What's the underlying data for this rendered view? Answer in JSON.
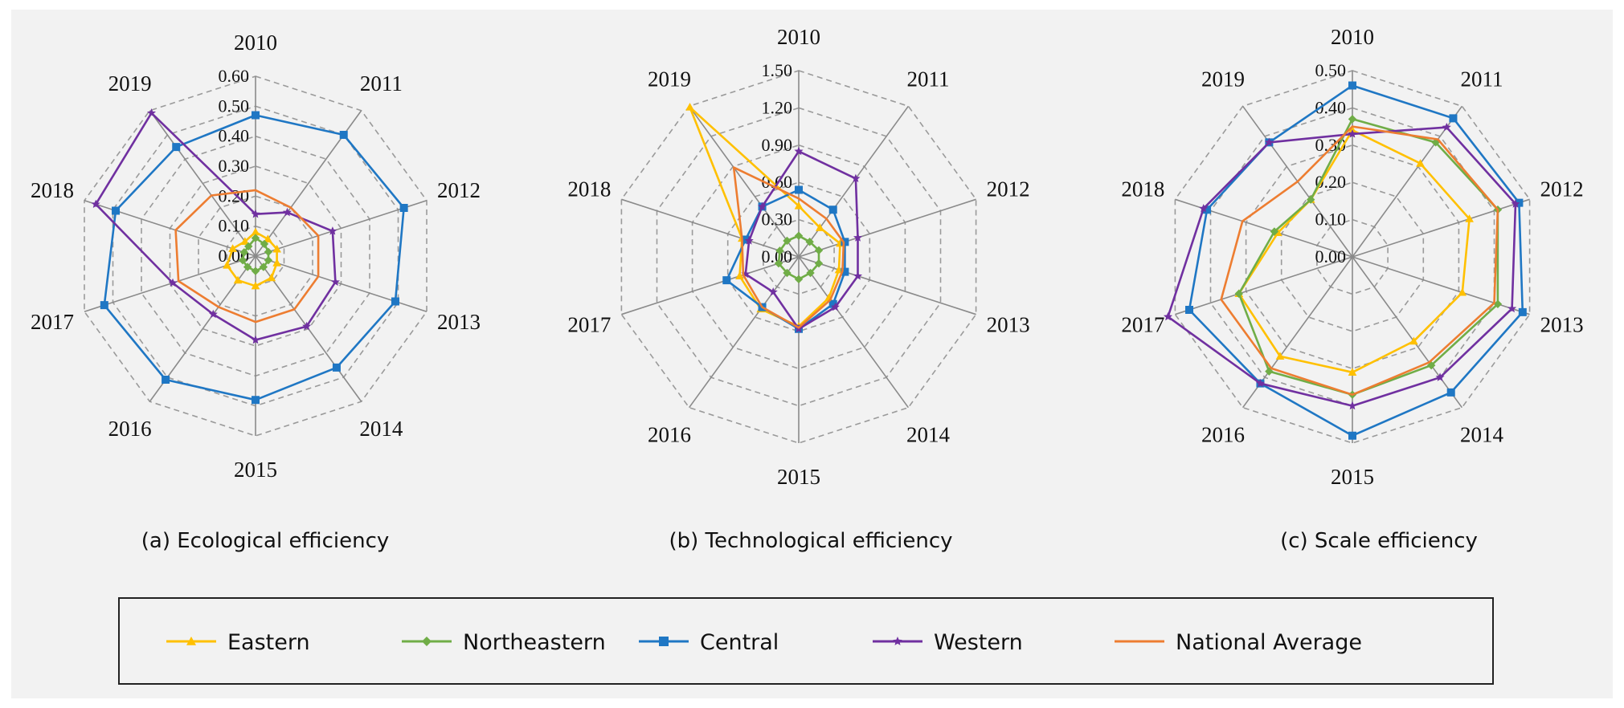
{
  "colors": {
    "Eastern": "#ffc000",
    "Northeastern": "#70ad47",
    "Central": "#1f77c4",
    "CentralA": "#4472c4",
    "Western": "#7030a0",
    "National Average": "#ed7d31"
  },
  "legend": {
    "items": [
      {
        "label": "Eastern",
        "color": "#ffc000",
        "marker": "triangle"
      },
      {
        "label": "Northeastern",
        "color": "#70ad47",
        "marker": "diamond"
      },
      {
        "label": "Central",
        "color": "#1f77c4",
        "marker": "square"
      },
      {
        "label": "Western",
        "color": "#7030a0",
        "marker": "star"
      },
      {
        "label": "National Average",
        "color": "#ed7d31",
        "marker": "none"
      }
    ]
  },
  "chart_data": [
    {
      "type": "radar",
      "caption": "(a) Ecological efficiency",
      "categories": [
        "2010",
        "2011",
        "2012",
        "2013",
        "2014",
        "2015",
        "2016",
        "2017",
        "2018",
        "2019"
      ],
      "rmax": 0.6,
      "ticks": [
        "0.00",
        "0.10",
        "0.20",
        "0.30",
        "0.40",
        "0.50",
        "0.60"
      ],
      "series": [
        {
          "name": "Eastern",
          "values": [
            0.08,
            0.07,
            0.075,
            0.075,
            0.09,
            0.1,
            0.1,
            0.1,
            0.08,
            0.06
          ]
        },
        {
          "name": "Northeastern",
          "values": [
            0.06,
            0.05,
            0.045,
            0.045,
            0.045,
            0.05,
            0.045,
            0.045,
            0.04,
            0.04
          ]
        },
        {
          "name": "Central",
          "values": [
            0.47,
            0.5,
            0.52,
            0.49,
            0.46,
            0.48,
            0.51,
            0.53,
            0.49,
            0.45
          ]
        },
        {
          "name": "Western",
          "values": [
            0.14,
            0.18,
            0.27,
            0.28,
            0.29,
            0.28,
            0.24,
            0.29,
            0.56,
            0.59
          ]
        },
        {
          "name": "National Average",
          "values": [
            0.22,
            0.2,
            0.22,
            0.22,
            0.22,
            0.22,
            0.21,
            0.27,
            0.28,
            0.25
          ]
        }
      ]
    },
    {
      "type": "radar",
      "caption": "(b) Technological efficiency",
      "categories": [
        "2010",
        "2011",
        "2012",
        "2013",
        "2014",
        "2015",
        "2016",
        "2017",
        "2018",
        "2019"
      ],
      "rmax": 1.5,
      "ticks": [
        "0.00",
        "0.30",
        "0.60",
        "0.90",
        "1.20",
        "1.50"
      ],
      "series": [
        {
          "name": "Eastern",
          "values": [
            0.41,
            0.29,
            0.35,
            0.34,
            0.41,
            0.56,
            0.52,
            0.5,
            0.48,
            1.49
          ]
        },
        {
          "name": "Northeastern",
          "values": [
            0.17,
            0.15,
            0.17,
            0.17,
            0.16,
            0.18,
            0.16,
            0.17,
            0.16,
            0.16
          ]
        },
        {
          "name": "Central",
          "values": [
            0.54,
            0.47,
            0.39,
            0.39,
            0.47,
            0.58,
            0.5,
            0.61,
            0.45,
            0.5
          ]
        },
        {
          "name": "Western",
          "values": [
            0.85,
            0.78,
            0.5,
            0.5,
            0.5,
            0.58,
            0.35,
            0.45,
            0.42,
            0.5
          ]
        },
        {
          "name": "National Average",
          "values": [
            0.47,
            0.38,
            0.38,
            0.37,
            0.43,
            0.57,
            0.5,
            0.47,
            0.48,
            0.89
          ]
        }
      ]
    },
    {
      "type": "radar",
      "caption": "(c) Scale efficiency",
      "categories": [
        "2010",
        "2011",
        "2012",
        "2013",
        "2014",
        "2015",
        "2016",
        "2017",
        "2018",
        "2019"
      ],
      "rmax": 0.5,
      "ticks": [
        "0.00",
        "0.10",
        "0.20",
        "0.30",
        "0.40",
        "0.50"
      ],
      "series": [
        {
          "name": "Eastern",
          "values": [
            0.34,
            0.31,
            0.33,
            0.31,
            0.28,
            0.31,
            0.33,
            0.32,
            0.21,
            0.19
          ]
        },
        {
          "name": "Northeastern",
          "values": [
            0.37,
            0.38,
            0.41,
            0.41,
            0.36,
            0.37,
            0.38,
            0.32,
            0.22,
            0.19
          ]
        },
        {
          "name": "Central",
          "values": [
            0.46,
            0.46,
            0.47,
            0.48,
            0.45,
            0.48,
            0.42,
            0.46,
            0.41,
            0.38
          ]
        },
        {
          "name": "Western",
          "values": [
            0.33,
            0.43,
            0.46,
            0.45,
            0.4,
            0.4,
            0.42,
            0.52,
            0.42,
            0.38
          ]
        },
        {
          "name": "National Average",
          "values": [
            0.35,
            0.39,
            0.41,
            0.4,
            0.35,
            0.37,
            0.37,
            0.37,
            0.31,
            0.25
          ]
        }
      ]
    }
  ]
}
